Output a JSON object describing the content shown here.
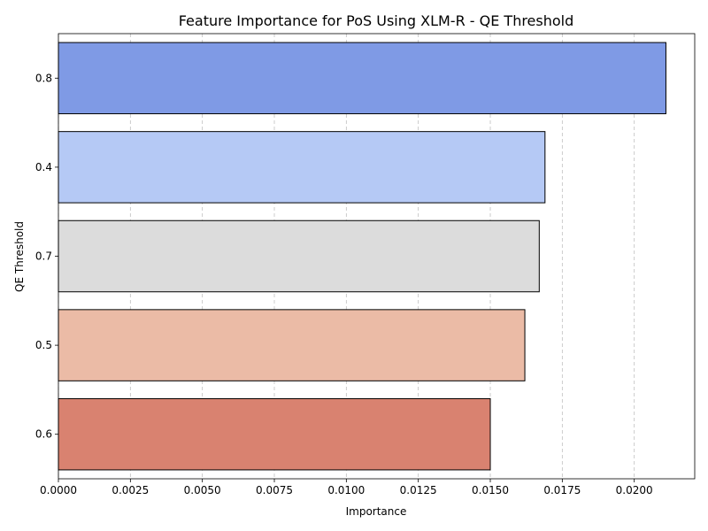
{
  "chart_data": {
    "type": "bar",
    "orientation": "horizontal",
    "title": "Feature Importance for PoS Using XLM-R - QE Threshold",
    "xlabel": "Importance",
    "ylabel": "QE Threshold",
    "categories": [
      "0.8",
      "0.4",
      "0.7",
      "0.5",
      "0.6"
    ],
    "values": [
      0.0211,
      0.0169,
      0.0167,
      0.0162,
      0.015
    ],
    "colors": [
      "#7f9ae5",
      "#b5c9f5",
      "#dcdcdc",
      "#ebbba6",
      "#d98270"
    ],
    "xlim": [
      0,
      0.0221
    ],
    "xticks": [
      "0.0000",
      "0.0025",
      "0.0050",
      "0.0075",
      "0.0100",
      "0.0125",
      "0.0150",
      "0.0175",
      "0.0200"
    ],
    "grid": {
      "x": true,
      "y": false,
      "style": "dashed"
    },
    "legend": "none"
  }
}
